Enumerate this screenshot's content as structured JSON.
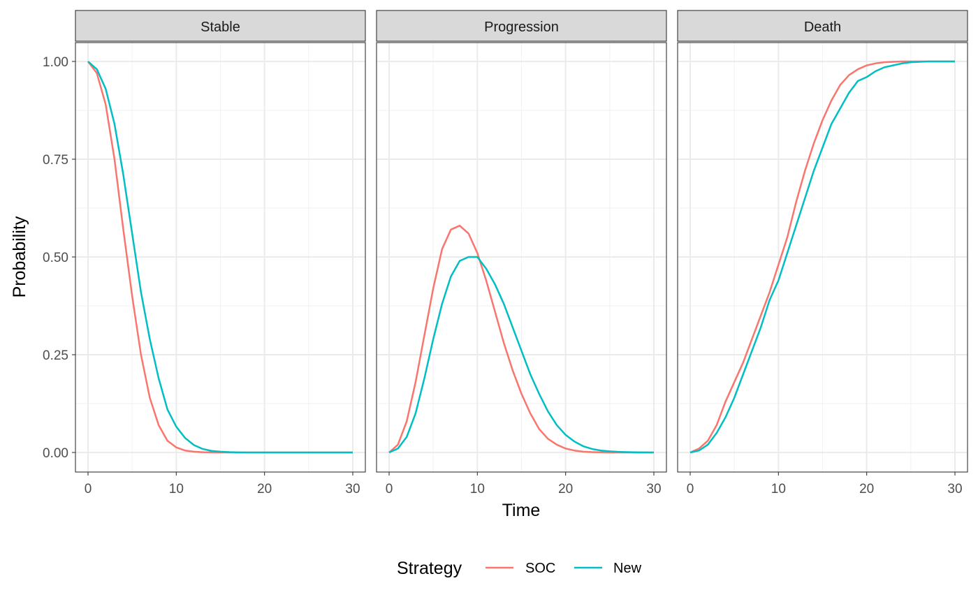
{
  "chart_data": {
    "type": "line",
    "xlabel": "Time",
    "ylabel": "Probability",
    "xlim": [
      0,
      30
    ],
    "ylim": [
      0,
      1
    ],
    "x_ticks": [
      "0",
      "10",
      "20",
      "30"
    ],
    "y_ticks": [
      "0.00",
      "0.25",
      "0.50",
      "0.75",
      "1.00"
    ],
    "x": [
      0,
      1,
      2,
      3,
      4,
      5,
      6,
      7,
      8,
      9,
      10,
      11,
      12,
      13,
      14,
      15,
      16,
      17,
      18,
      19,
      20,
      21,
      22,
      23,
      24,
      25,
      26,
      27,
      28,
      29,
      30
    ],
    "grid": true,
    "legend": {
      "title": "Strategy",
      "position": "bottom",
      "entries": [
        {
          "name": "SOC",
          "color": "#F8766D"
        },
        {
          "name": "New",
          "color": "#00BFC4"
        }
      ]
    },
    "panels": [
      {
        "title": "Stable",
        "series": [
          {
            "name": "SOC",
            "color": "#F8766D",
            "values": [
              1.0,
              0.97,
              0.89,
              0.75,
              0.57,
              0.4,
              0.25,
              0.14,
              0.07,
              0.03,
              0.013,
              0.005,
              0.002,
              0.0006,
              0.0002,
              0.0001,
              0,
              0,
              0,
              0,
              0,
              0,
              0,
              0,
              0,
              0,
              0,
              0,
              0,
              0,
              0
            ]
          },
          {
            "name": "New",
            "color": "#00BFC4",
            "values": [
              1.0,
              0.98,
              0.93,
              0.84,
              0.71,
              0.56,
              0.41,
              0.29,
              0.19,
              0.11,
              0.066,
              0.037,
              0.019,
              0.009,
              0.004,
              0.002,
              0.0008,
              0.0003,
              0.0001,
              0,
              0,
              0,
              0,
              0,
              0,
              0,
              0,
              0,
              0,
              0,
              0
            ]
          }
        ]
      },
      {
        "title": "Progression",
        "series": [
          {
            "name": "SOC",
            "color": "#F8766D",
            "values": [
              0.0,
              0.02,
              0.08,
              0.18,
              0.3,
              0.42,
              0.52,
              0.57,
              0.58,
              0.56,
              0.51,
              0.44,
              0.36,
              0.28,
              0.21,
              0.15,
              0.1,
              0.06,
              0.035,
              0.02,
              0.01,
              0.005,
              0.002,
              0.001,
              0.0004,
              0.0001,
              0,
              0,
              0,
              0,
              0
            ]
          },
          {
            "name": "New",
            "color": "#00BFC4",
            "values": [
              0.0,
              0.01,
              0.04,
              0.1,
              0.19,
              0.29,
              0.38,
              0.45,
              0.49,
              0.5,
              0.5,
              0.47,
              0.43,
              0.38,
              0.32,
              0.26,
              0.2,
              0.15,
              0.105,
              0.07,
              0.045,
              0.028,
              0.016,
              0.009,
              0.005,
              0.003,
              0.0015,
              0.0008,
              0.0004,
              0.0002,
              0
            ]
          }
        ]
      },
      {
        "title": "Death",
        "series": [
          {
            "name": "SOC",
            "color": "#F8766D",
            "values": [
              0.0,
              0.01,
              0.03,
              0.07,
              0.13,
              0.18,
              0.23,
              0.29,
              0.35,
              0.41,
              0.48,
              0.55,
              0.64,
              0.72,
              0.79,
              0.85,
              0.9,
              0.94,
              0.965,
              0.98,
              0.99,
              0.995,
              0.998,
              0.999,
              1.0,
              1.0,
              1.0,
              1.0,
              1.0,
              1.0,
              1.0
            ]
          },
          {
            "name": "New",
            "color": "#00BFC4",
            "values": [
              0.0,
              0.005,
              0.02,
              0.05,
              0.09,
              0.14,
              0.2,
              0.26,
              0.32,
              0.39,
              0.44,
              0.51,
              0.58,
              0.65,
              0.72,
              0.78,
              0.84,
              0.88,
              0.92,
              0.95,
              0.96,
              0.975,
              0.985,
              0.99,
              0.995,
              0.998,
              0.999,
              1.0,
              1.0,
              1.0,
              1.0
            ]
          }
        ]
      }
    ]
  }
}
